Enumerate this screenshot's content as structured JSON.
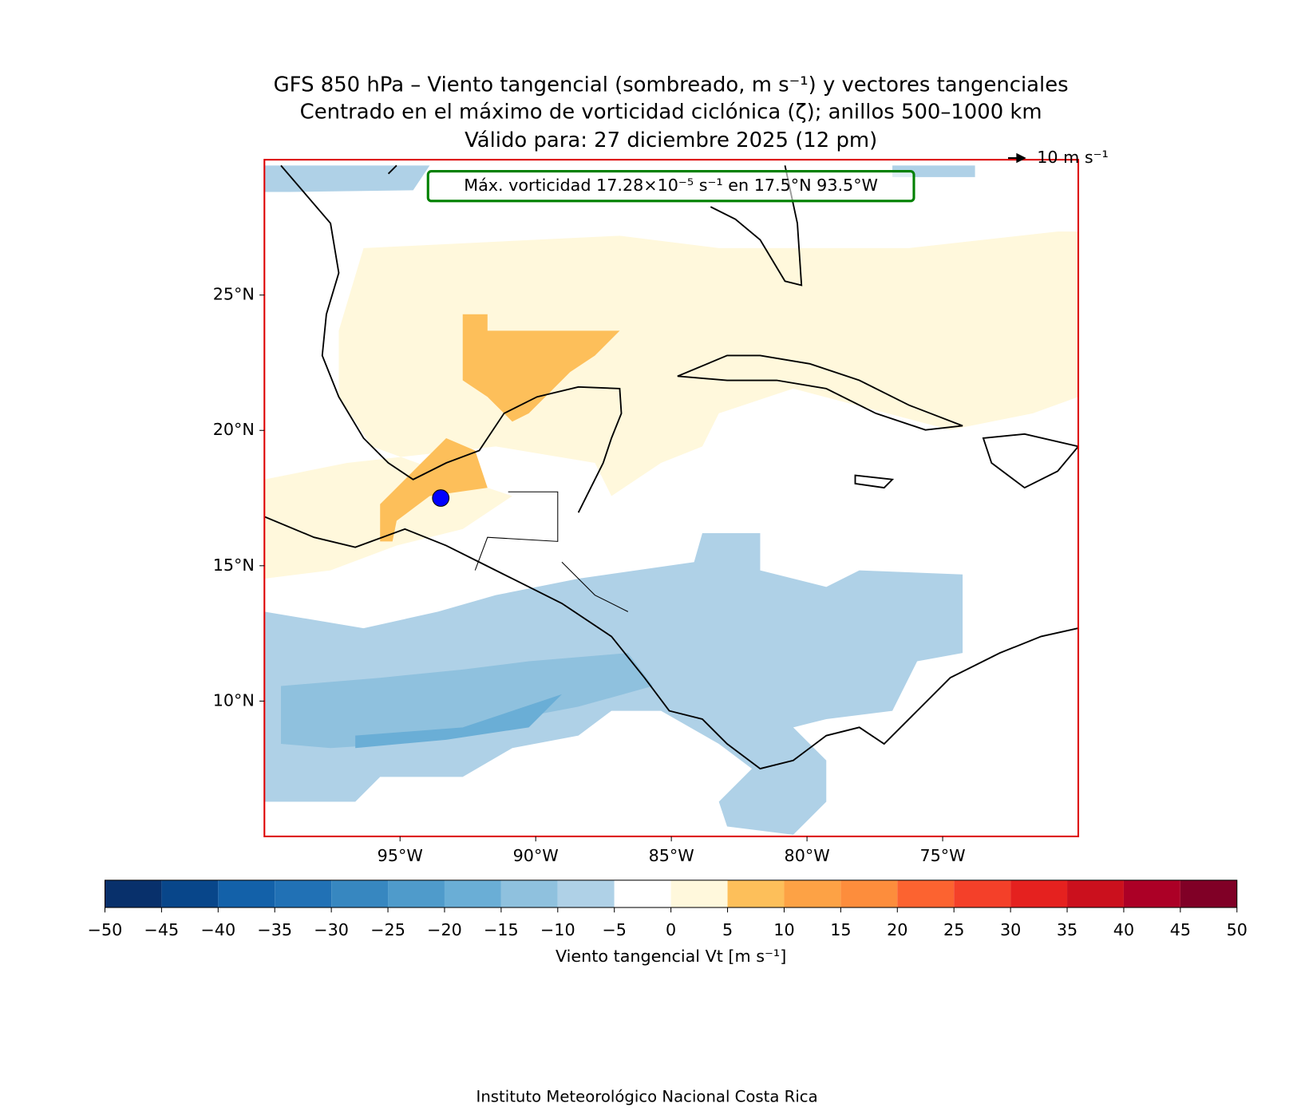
{
  "chart_data": {
    "type": "map",
    "title": [
      "GFS 850 hPa – Viento tangencial (sombreado, m s⁻¹) y vectores tangenciales",
      "Centrado en el máximo de vorticidad ciclónica (ζ); anillos 500–1000 km",
      "Válido para: 27 diciembre 2025 (12 pm)"
    ],
    "annotation": "Máx. vorticidad 17.28×10⁻⁵ s⁻¹ en 17.5°N 93.5°W",
    "reference_vector": "10 m s⁻¹",
    "xlim": [
      -100,
      -70
    ],
    "ylim": [
      5,
      30
    ],
    "xticks": [
      {
        "value": -95,
        "label": "95°W"
      },
      {
        "value": -90,
        "label": "90°W"
      },
      {
        "value": -85,
        "label": "85°W"
      },
      {
        "value": -80,
        "label": "80°W"
      },
      {
        "value": -75,
        "label": "75°W"
      }
    ],
    "yticks": [
      {
        "value": 10,
        "label": "10°N"
      },
      {
        "value": 15,
        "label": "15°N"
      },
      {
        "value": 20,
        "label": "20°N"
      },
      {
        "value": 25,
        "label": "25°N"
      }
    ],
    "center": {
      "lat": 17.5,
      "lon": -93.5,
      "color": "#0000ff"
    },
    "colorbar": {
      "label": "Viento tangencial Vt [m s⁻¹]",
      "ticks": [
        {
          "value": -50,
          "label": "−50"
        },
        {
          "value": -45,
          "label": "−45"
        },
        {
          "value": -40,
          "label": "−40"
        },
        {
          "value": -35,
          "label": "−35"
        },
        {
          "value": -30,
          "label": "−30"
        },
        {
          "value": -25,
          "label": "−25"
        },
        {
          "value": -20,
          "label": "−20"
        },
        {
          "value": -15,
          "label": "−15"
        },
        {
          "value": -10,
          "label": "−10"
        },
        {
          "value": -5,
          "label": "−5"
        },
        0,
        5,
        10,
        15,
        20,
        25,
        30,
        35,
        40,
        45,
        50
      ],
      "colors": [
        "#08306b",
        "#08468a",
        "#1361a9",
        "#2171b5",
        "#3787c0",
        "#4f9bcb",
        "#6aaed6",
        "#8fc1de",
        "#afd1e7",
        "#ffffff",
        "#fff8dc",
        "#fdbf5a",
        "#fda245",
        "#fd8d3c",
        "#fc6330",
        "#f44029",
        "#e5211f",
        "#cb101d",
        "#ac0026",
        "#800026"
      ]
    },
    "footer": "Instituto Meteorológico Nacional Costa Rica"
  }
}
